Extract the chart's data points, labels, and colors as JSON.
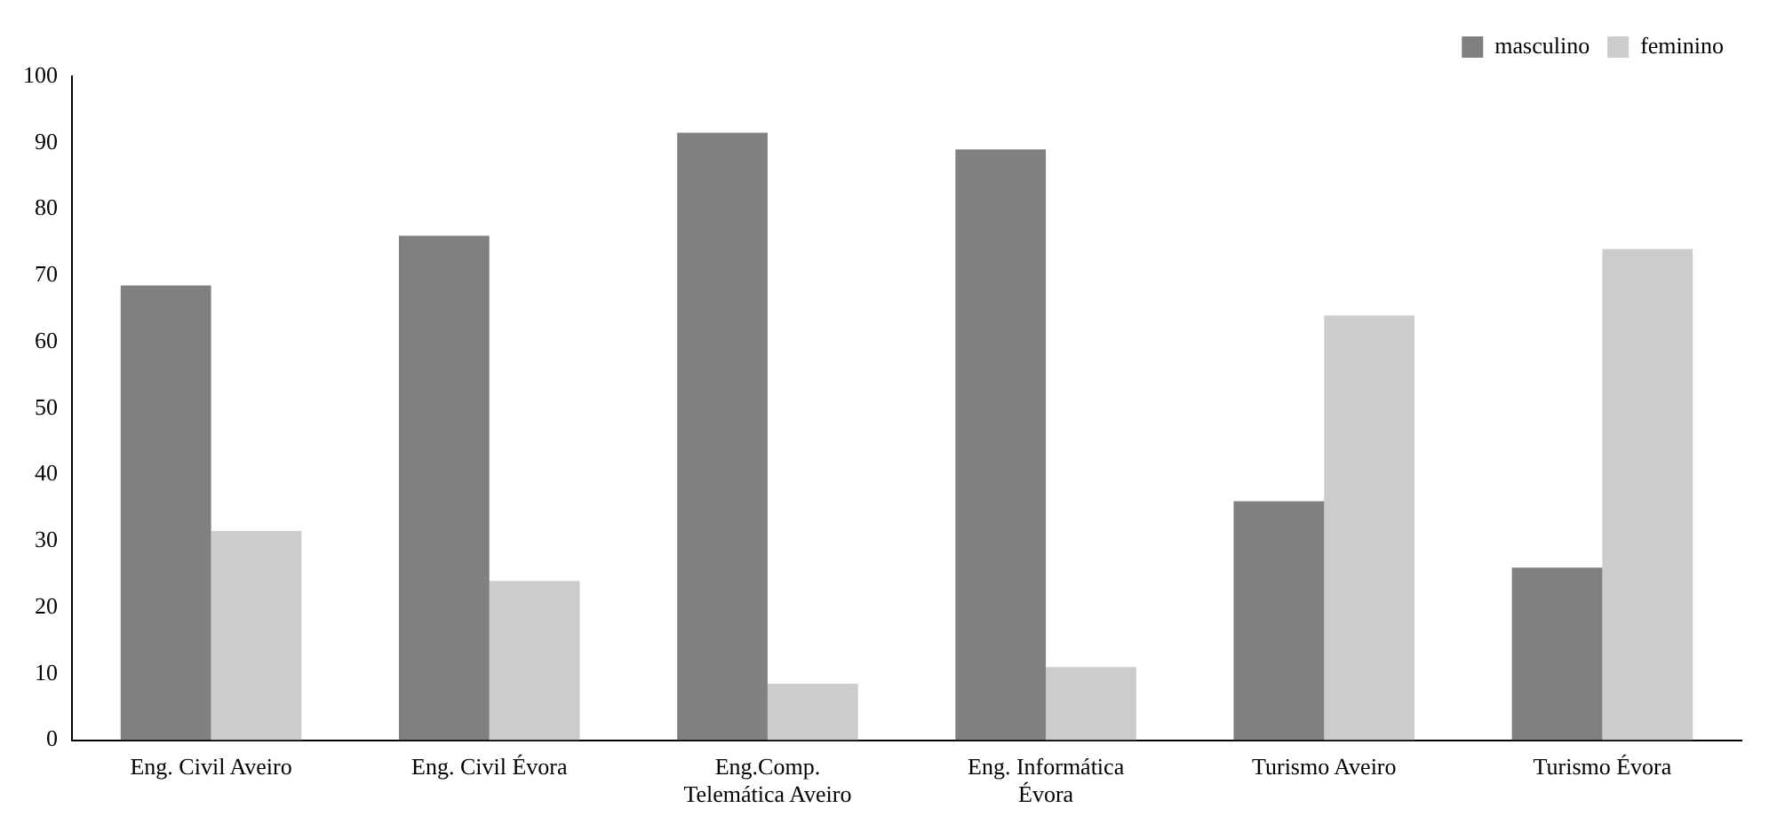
{
  "chart_data": {
    "type": "bar",
    "categories": [
      "Eng. Civil Aveiro",
      "Eng. Civil Évora",
      "Eng.Comp. Telemática Aveiro",
      "Eng. Informática Évora",
      "Turismo Aveiro",
      "Turismo Évora"
    ],
    "series": [
      {
        "name": "masculino",
        "color": "#808080",
        "values": [
          68.5,
          76,
          91.5,
          89,
          36,
          26
        ]
      },
      {
        "name": "feminino",
        "color": "#cccccc",
        "values": [
          31.5,
          24,
          8.5,
          11,
          64,
          74
        ]
      }
    ],
    "ylim": [
      0,
      100
    ],
    "yticks": [
      0,
      10,
      20,
      30,
      40,
      50,
      60,
      70,
      80,
      90,
      100
    ],
    "grid": false,
    "legend": "top right"
  }
}
